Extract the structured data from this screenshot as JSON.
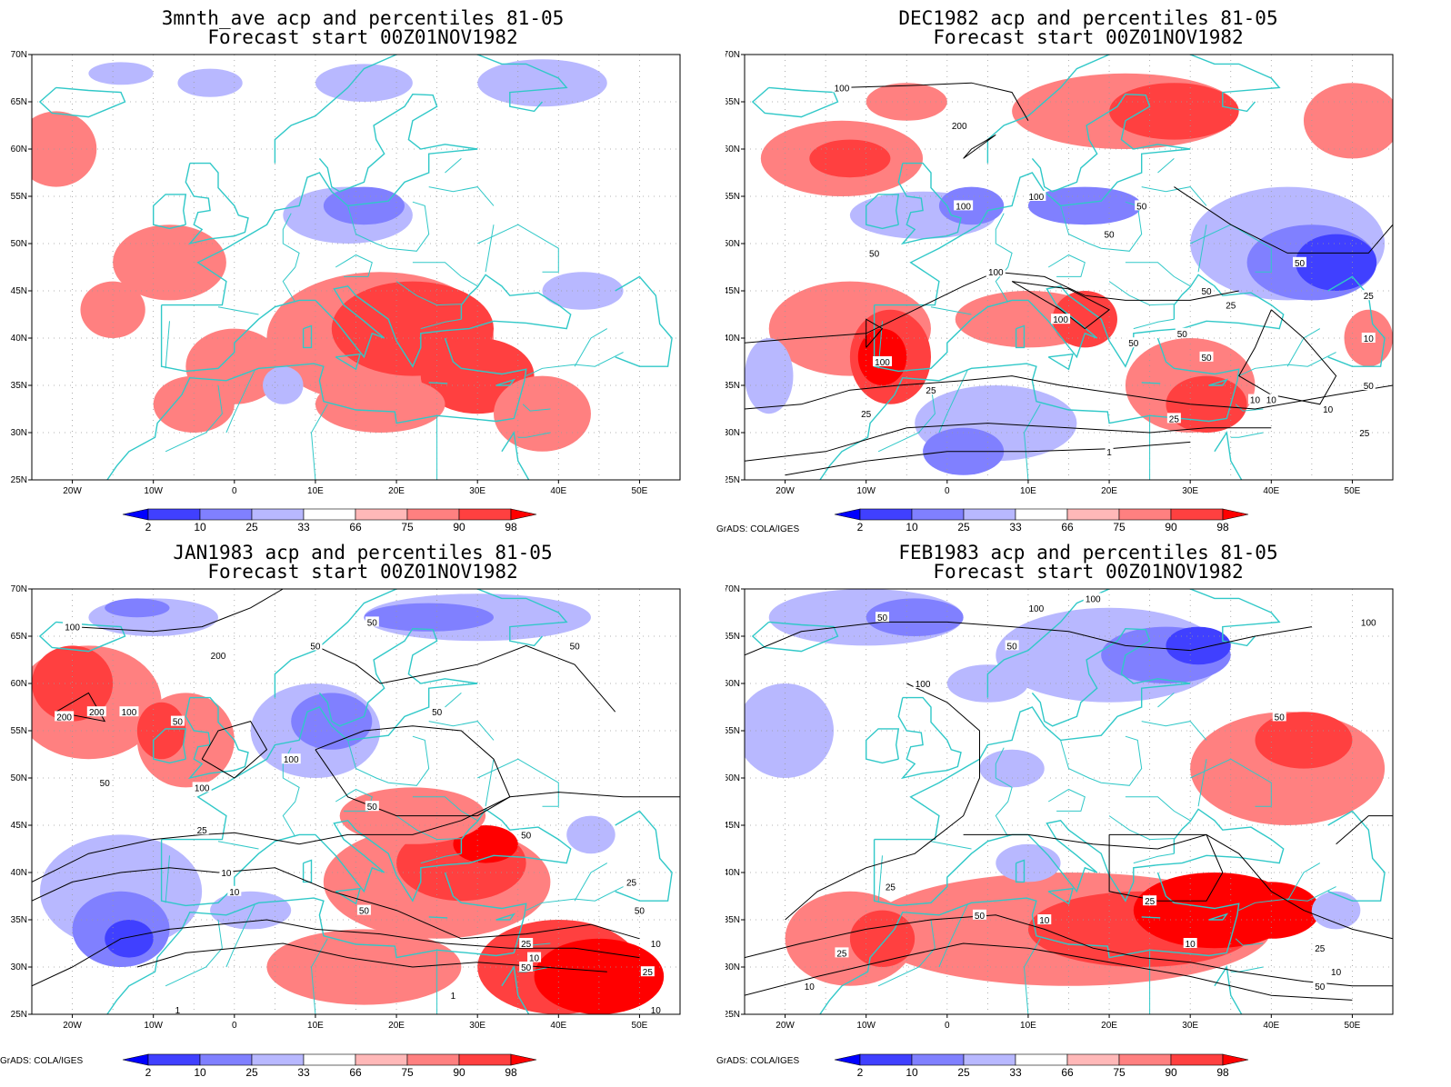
{
  "panels": [
    {
      "title_line1": "3mnth_ave acp and percentiles 81-05",
      "title_line2": "Forecast start 00Z01NOV1982",
      "credit": "",
      "contour_labels": []
    },
    {
      "title_line1": "DEC1982 acp and percentiles 81-05",
      "title_line2": "Forecast start 00Z01NOV1982",
      "credit": "GrADS: COLA/IGES",
      "contour_labels": [
        "100",
        "200",
        "100",
        "50",
        "100",
        "100",
        "50",
        "50",
        "50",
        "100",
        "50",
        "50",
        "25",
        "10",
        "25",
        "10",
        "1",
        "100",
        "50",
        "25",
        "50",
        "10",
        "25",
        "50",
        "25",
        "25",
        "10"
      ]
    },
    {
      "title_line1": "JAN1983 acp and percentiles 81-05",
      "title_line2": "Forecast start 00Z01NOV1982",
      "credit": "GrADS: COLA/IGES",
      "contour_labels": [
        "100",
        "200",
        "200",
        "100",
        "200",
        "50",
        "50",
        "50",
        "50",
        "50",
        "100",
        "50",
        "100",
        "50",
        "25",
        "10",
        "10",
        "50",
        "50",
        "25",
        "10",
        "50",
        "50",
        "25",
        "10",
        "1",
        "1",
        "25",
        "10"
      ]
    },
    {
      "title_line1": "FEB1983 acp and percentiles 81-05",
      "title_line2": "Forecast start 00Z01NOV1982",
      "credit": "GrADS: COLA/IGES",
      "contour_labels": [
        "100",
        "100",
        "50",
        "100",
        "50",
        "50",
        "100",
        "25",
        "25",
        "10",
        "50",
        "25",
        "10",
        "10",
        "50",
        "25",
        "10"
      ]
    }
  ],
  "axes": {
    "lat_labels": [
      "70N",
      "65N",
      "60N",
      "55N",
      "50N",
      "45N",
      "40N",
      "35N",
      "30N",
      "25N"
    ],
    "lon_labels": [
      "20W",
      "10W",
      "0",
      "10E",
      "20E",
      "30E",
      "40E",
      "50E"
    ]
  },
  "colorbar": {
    "labels": [
      "2",
      "10",
      "25",
      "33",
      "66",
      "75",
      "90",
      "98"
    ],
    "colors": [
      "#0000ff",
      "#4040ff",
      "#8080ff",
      "#b8b8ff",
      "#ffffff",
      "#ffb8b8",
      "#ff8080",
      "#ff4040",
      "#ff0000"
    ]
  },
  "colors": {
    "coastline": "#30c8c8",
    "contour": "#000000",
    "grid": "#b0b0b0"
  }
}
